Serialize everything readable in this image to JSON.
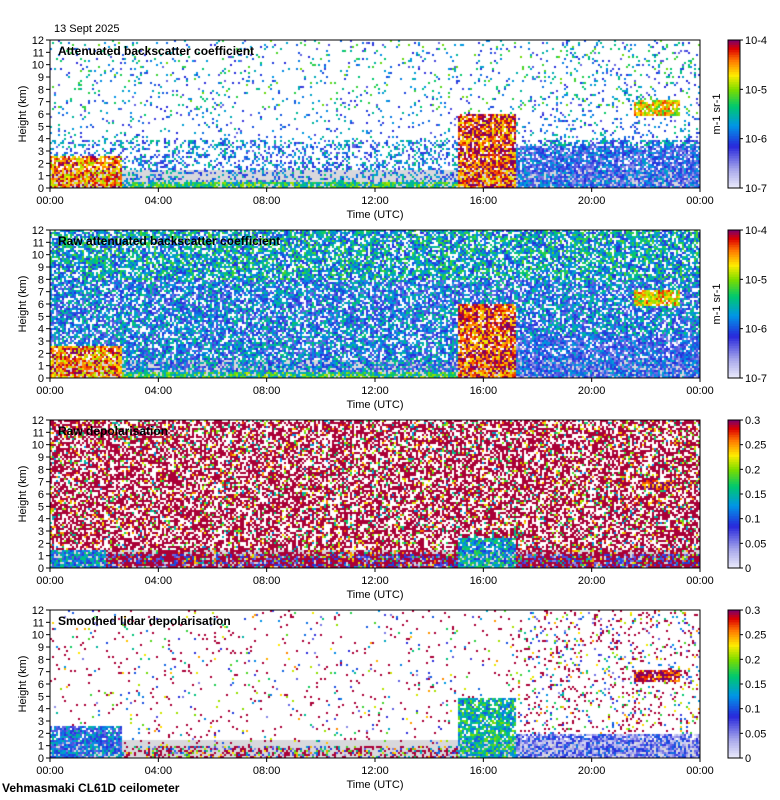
{
  "header": {
    "date": "13 Sept 2025"
  },
  "footer": {
    "instrument": "Vehmasmaki CL61D ceilometer"
  },
  "colors": {
    "background": "#ffffff",
    "low_signal": "#d8d8dc",
    "axis": "#000000"
  },
  "chart_data": [
    {
      "type": "heatmap",
      "title": "Attenuated backscatter coefficient",
      "xlabel": "Time (UTC)",
      "ylabel": "Height (km)",
      "xlim": [
        0,
        24
      ],
      "ylim": [
        0,
        12
      ],
      "xticks": [
        "00:00",
        "04:00",
        "08:00",
        "12:00",
        "16:00",
        "20:00",
        "00:00"
      ],
      "yticks": [
        "0",
        "1",
        "2",
        "3",
        "4",
        "5",
        "6",
        "7",
        "8",
        "9",
        "10",
        "11",
        "12"
      ],
      "colorbar": {
        "scale": "log",
        "range": [
          1e-07,
          0.0001
        ],
        "ticks": [
          "10-7",
          "10-6",
          "10-5",
          "10-4"
        ],
        "label": "m-1 sr-1"
      },
      "noise": "sparse",
      "features": [
        {
          "name": "low cloud layer",
          "t": [
            0.0,
            2.6
          ],
          "h": [
            0.0,
            2.6
          ],
          "level": 0.85
        },
        {
          "name": "surface aerosol",
          "t": [
            2.6,
            15.0
          ],
          "h": [
            0.0,
            0.6
          ],
          "level": 0.55
        },
        {
          "name": "convective cloud",
          "t": [
            15.0,
            17.2
          ],
          "h": [
            0.0,
            6.0
          ],
          "level": 0.9
        },
        {
          "name": "high cloud layer",
          "t": [
            21.5,
            23.2
          ],
          "h": [
            5.9,
            7.2
          ],
          "level": 0.75
        },
        {
          "name": "evening aerosol",
          "t": [
            17.0,
            24.0
          ],
          "h": [
            0.0,
            3.5
          ],
          "level": 0.3
        }
      ]
    },
    {
      "type": "heatmap",
      "title": "Raw attenuated backscatter coefficient",
      "xlabel": "Time (UTC)",
      "ylabel": "Height (km)",
      "xlim": [
        0,
        24
      ],
      "ylim": [
        0,
        12
      ],
      "xticks": [
        "00:00",
        "04:00",
        "08:00",
        "12:00",
        "16:00",
        "20:00",
        "00:00"
      ],
      "yticks": [
        "0",
        "1",
        "2",
        "3",
        "4",
        "5",
        "6",
        "7",
        "8",
        "9",
        "10",
        "11",
        "12"
      ],
      "colorbar": {
        "scale": "log",
        "range": [
          1e-07,
          0.0001
        ],
        "ticks": [
          "10-7",
          "10-6",
          "10-5",
          "10-4"
        ],
        "label": "m-1 sr-1"
      },
      "noise": "dense-backscatter",
      "features": [
        {
          "name": "low cloud layer",
          "t": [
            0.0,
            2.6
          ],
          "h": [
            0.0,
            2.6
          ],
          "level": 0.85
        },
        {
          "name": "surface aerosol",
          "t": [
            2.6,
            15.0
          ],
          "h": [
            0.0,
            0.6
          ],
          "level": 0.55
        },
        {
          "name": "convective cloud",
          "t": [
            15.0,
            17.2
          ],
          "h": [
            0.0,
            6.0
          ],
          "level": 0.9
        },
        {
          "name": "high cloud layer",
          "t": [
            21.5,
            23.2
          ],
          "h": [
            5.9,
            7.2
          ],
          "level": 0.75
        },
        {
          "name": "evening aerosol",
          "t": [
            17.0,
            24.0
          ],
          "h": [
            0.0,
            3.5
          ],
          "level": 0.3
        }
      ]
    },
    {
      "type": "heatmap",
      "title": "Raw depolarisation",
      "xlabel": "Time (UTC)",
      "ylabel": "Height (km)",
      "xlim": [
        0,
        24
      ],
      "ylim": [
        0,
        12
      ],
      "xticks": [
        "00:00",
        "04:00",
        "08:00",
        "12:00",
        "16:00",
        "20:00",
        "00:00"
      ],
      "yticks": [
        "0",
        "1",
        "2",
        "3",
        "4",
        "5",
        "6",
        "7",
        "8",
        "9",
        "10",
        "11",
        "12"
      ],
      "colorbar": {
        "scale": "linear",
        "range": [
          0,
          0.3
        ],
        "ticks": [
          "0",
          "0.05",
          "0.1",
          "0.15",
          "0.2",
          "0.25",
          "0.3"
        ],
        "label": ""
      },
      "noise": "dense-depol",
      "features": [
        {
          "name": "low cloud layer",
          "t": [
            0.0,
            2.0
          ],
          "h": [
            0.0,
            1.6
          ],
          "level": 0.4
        },
        {
          "name": "convective cloud",
          "t": [
            15.0,
            17.2
          ],
          "h": [
            0.0,
            2.5
          ],
          "level": 0.45
        },
        {
          "name": "high cloud layer",
          "t": [
            21.8,
            23.0
          ],
          "h": [
            6.4,
            7.2
          ],
          "level": 0.95
        }
      ]
    },
    {
      "type": "heatmap",
      "title": "Smoothed lidar depolarisation",
      "xlabel": "Time (UTC)",
      "ylabel": "Height (km)",
      "xlim": [
        0,
        24
      ],
      "ylim": [
        0,
        12
      ],
      "xticks": [
        "00:00",
        "04:00",
        "08:00",
        "12:00",
        "16:00",
        "20:00",
        "00:00"
      ],
      "yticks": [
        "0",
        "1",
        "2",
        "3",
        "4",
        "5",
        "6",
        "7",
        "8",
        "9",
        "10",
        "11",
        "12"
      ],
      "colorbar": {
        "scale": "linear",
        "range": [
          0,
          0.3
        ],
        "ticks": [
          "0",
          "0.05",
          "0.1",
          "0.15",
          "0.2",
          "0.25",
          "0.3"
        ],
        "label": ""
      },
      "noise": "sparse-depol",
      "features": [
        {
          "name": "low cloud layer",
          "t": [
            0.0,
            2.6
          ],
          "h": [
            0.0,
            2.6
          ],
          "level": 0.35
        },
        {
          "name": "convective cloud",
          "t": [
            15.0,
            17.2
          ],
          "h": [
            0.0,
            5.0
          ],
          "level": 0.5
        },
        {
          "name": "high cloud layer",
          "t": [
            21.5,
            23.2
          ],
          "h": [
            6.2,
            7.2
          ],
          "level": 0.95
        },
        {
          "name": "evening aerosol",
          "t": [
            17.0,
            24.0
          ],
          "h": [
            0.0,
            2.0
          ],
          "level": 0.2
        }
      ]
    }
  ]
}
